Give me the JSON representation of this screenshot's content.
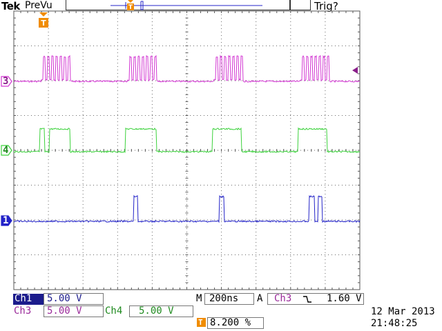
{
  "header": {
    "brand": "Tek",
    "mode": "PreVu",
    "trigger_status": "Trig?"
  },
  "trigger_marker": {
    "glyph": "T"
  },
  "channels": {
    "ch3": {
      "marker": "3",
      "color": "#d236d2",
      "scale_label": "Ch3",
      "scale_value": "5.00 V"
    },
    "ch4": {
      "marker": "4",
      "color": "#3cd23c",
      "scale_label": "Ch4",
      "scale_value": "5.00 V"
    },
    "ch1": {
      "marker": "1",
      "color": "#2323c8",
      "scale_label": "Ch1",
      "scale_value": "5.00 V"
    }
  },
  "readout": {
    "timebase_prefix": "M",
    "timebase_value": "200ns",
    "trigger_prefix": "A",
    "trigger_source": "Ch3",
    "trigger_slope_icon": "falling-edge-icon",
    "trigger_level": "1.60 V",
    "trigger_position_icon": "T",
    "trigger_position": "8.200 %"
  },
  "datetime": {
    "date": "12 Mar  2013",
    "time": "21:48:25"
  }
}
